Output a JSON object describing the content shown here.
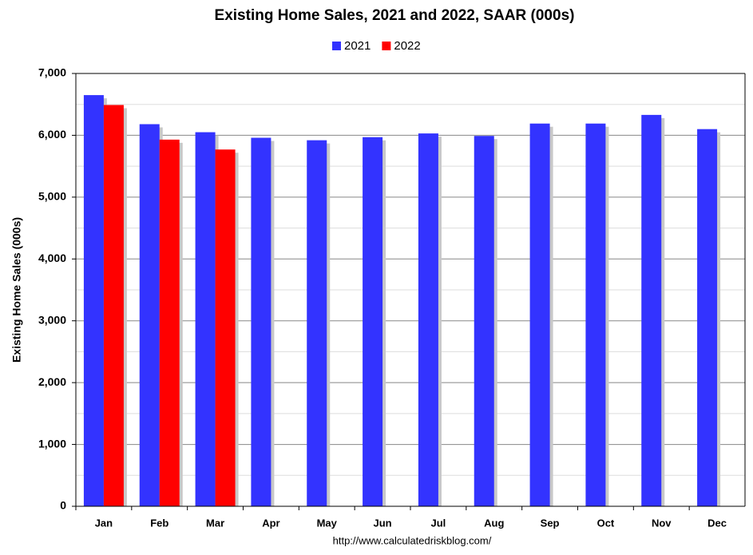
{
  "chart_data": {
    "type": "bar",
    "title": "Existing Home Sales,  2021 and 2022, SAAR (000s)",
    "y_label": "Existing Home Sales (000s)",
    "footer": "http://www.calculatedriskblog.com/",
    "categories": [
      "Jan",
      "Feb",
      "Mar",
      "Apr",
      "May",
      "Jun",
      "Jul",
      "Aug",
      "Sep",
      "Oct",
      "Nov",
      "Dec"
    ],
    "series": [
      {
        "name": "2021",
        "color": "#3333ff",
        "values": [
          6650,
          6180,
          6050,
          5960,
          5920,
          5970,
          6030,
          5990,
          6190,
          6190,
          6330,
          6100
        ]
      },
      {
        "name": "2022",
        "color": "#ff0000",
        "values": [
          6490,
          5930,
          5770,
          null,
          null,
          null,
          null,
          null,
          null,
          null,
          null,
          null
        ]
      }
    ],
    "ylim": [
      0,
      7000
    ],
    "yticks": [
      0,
      {
        "value": 1000,
        "label": "1,000"
      },
      {
        "value": 2000,
        "label": "2,000"
      },
      {
        "value": 3000,
        "label": "3,000"
      },
      {
        "value": 4000,
        "label": "4,000"
      },
      {
        "value": 5000,
        "label": "5,000"
      },
      {
        "value": 6000,
        "label": "6,000"
      },
      {
        "value": 7000,
        "label": "7,000"
      }
    ],
    "minor_yticks": [
      500,
      1500,
      2500,
      3500,
      4500,
      5500,
      6500
    ],
    "grid": true,
    "legend": "top"
  }
}
